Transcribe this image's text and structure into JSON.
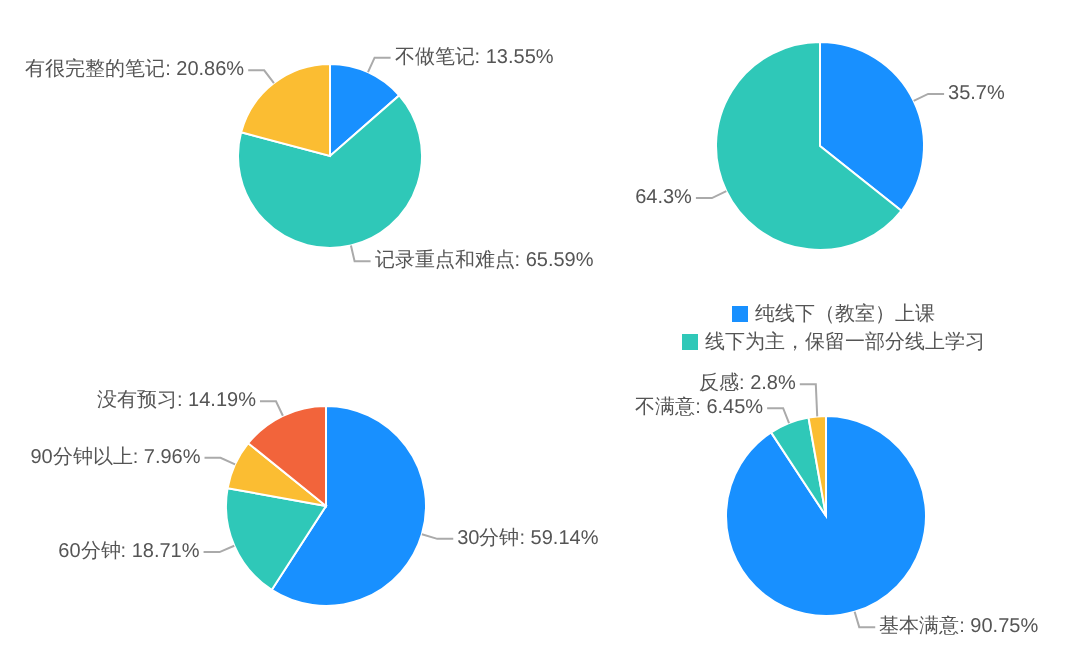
{
  "chart_data": [
    {
      "type": "pie",
      "categories": [
        "不做笔记",
        "记录重点和难点",
        "有很完整的笔记"
      ],
      "values": [
        13.55,
        65.59,
        20.86
      ],
      "colors": [
        "#1890ff",
        "#2fc8b8",
        "#fbbd32"
      ],
      "value_labels": [
        "13.55%",
        "65.59%",
        "20.86%"
      ]
    },
    {
      "type": "pie",
      "categories": [
        "纯线下（教室）上课",
        "线下为主，保留一部分线上学习"
      ],
      "values": [
        35.7,
        64.3
      ],
      "colors": [
        "#1890ff",
        "#2fc8b8"
      ],
      "value_labels": [
        "35.7%",
        "64.3%"
      ],
      "legend": "bottom"
    },
    {
      "type": "pie",
      "categories": [
        "30分钟",
        "60分钟",
        "90分钟以上",
        "没有预习"
      ],
      "values": [
        59.14,
        18.71,
        7.96,
        14.19
      ],
      "colors": [
        "#1890ff",
        "#2fc8b8",
        "#fbbd32",
        "#f2643b"
      ],
      "value_labels": [
        "59.14%",
        "18.71%",
        "7.96%",
        "14.19%"
      ]
    },
    {
      "type": "pie",
      "categories": [
        "基本满意",
        "不满意",
        "反感"
      ],
      "values": [
        90.75,
        6.45,
        2.8
      ],
      "colors": [
        "#1890ff",
        "#2fc8b8",
        "#fbbd32"
      ],
      "value_labels": [
        "90.75%",
        "6.45%",
        "2.8%"
      ]
    }
  ]
}
